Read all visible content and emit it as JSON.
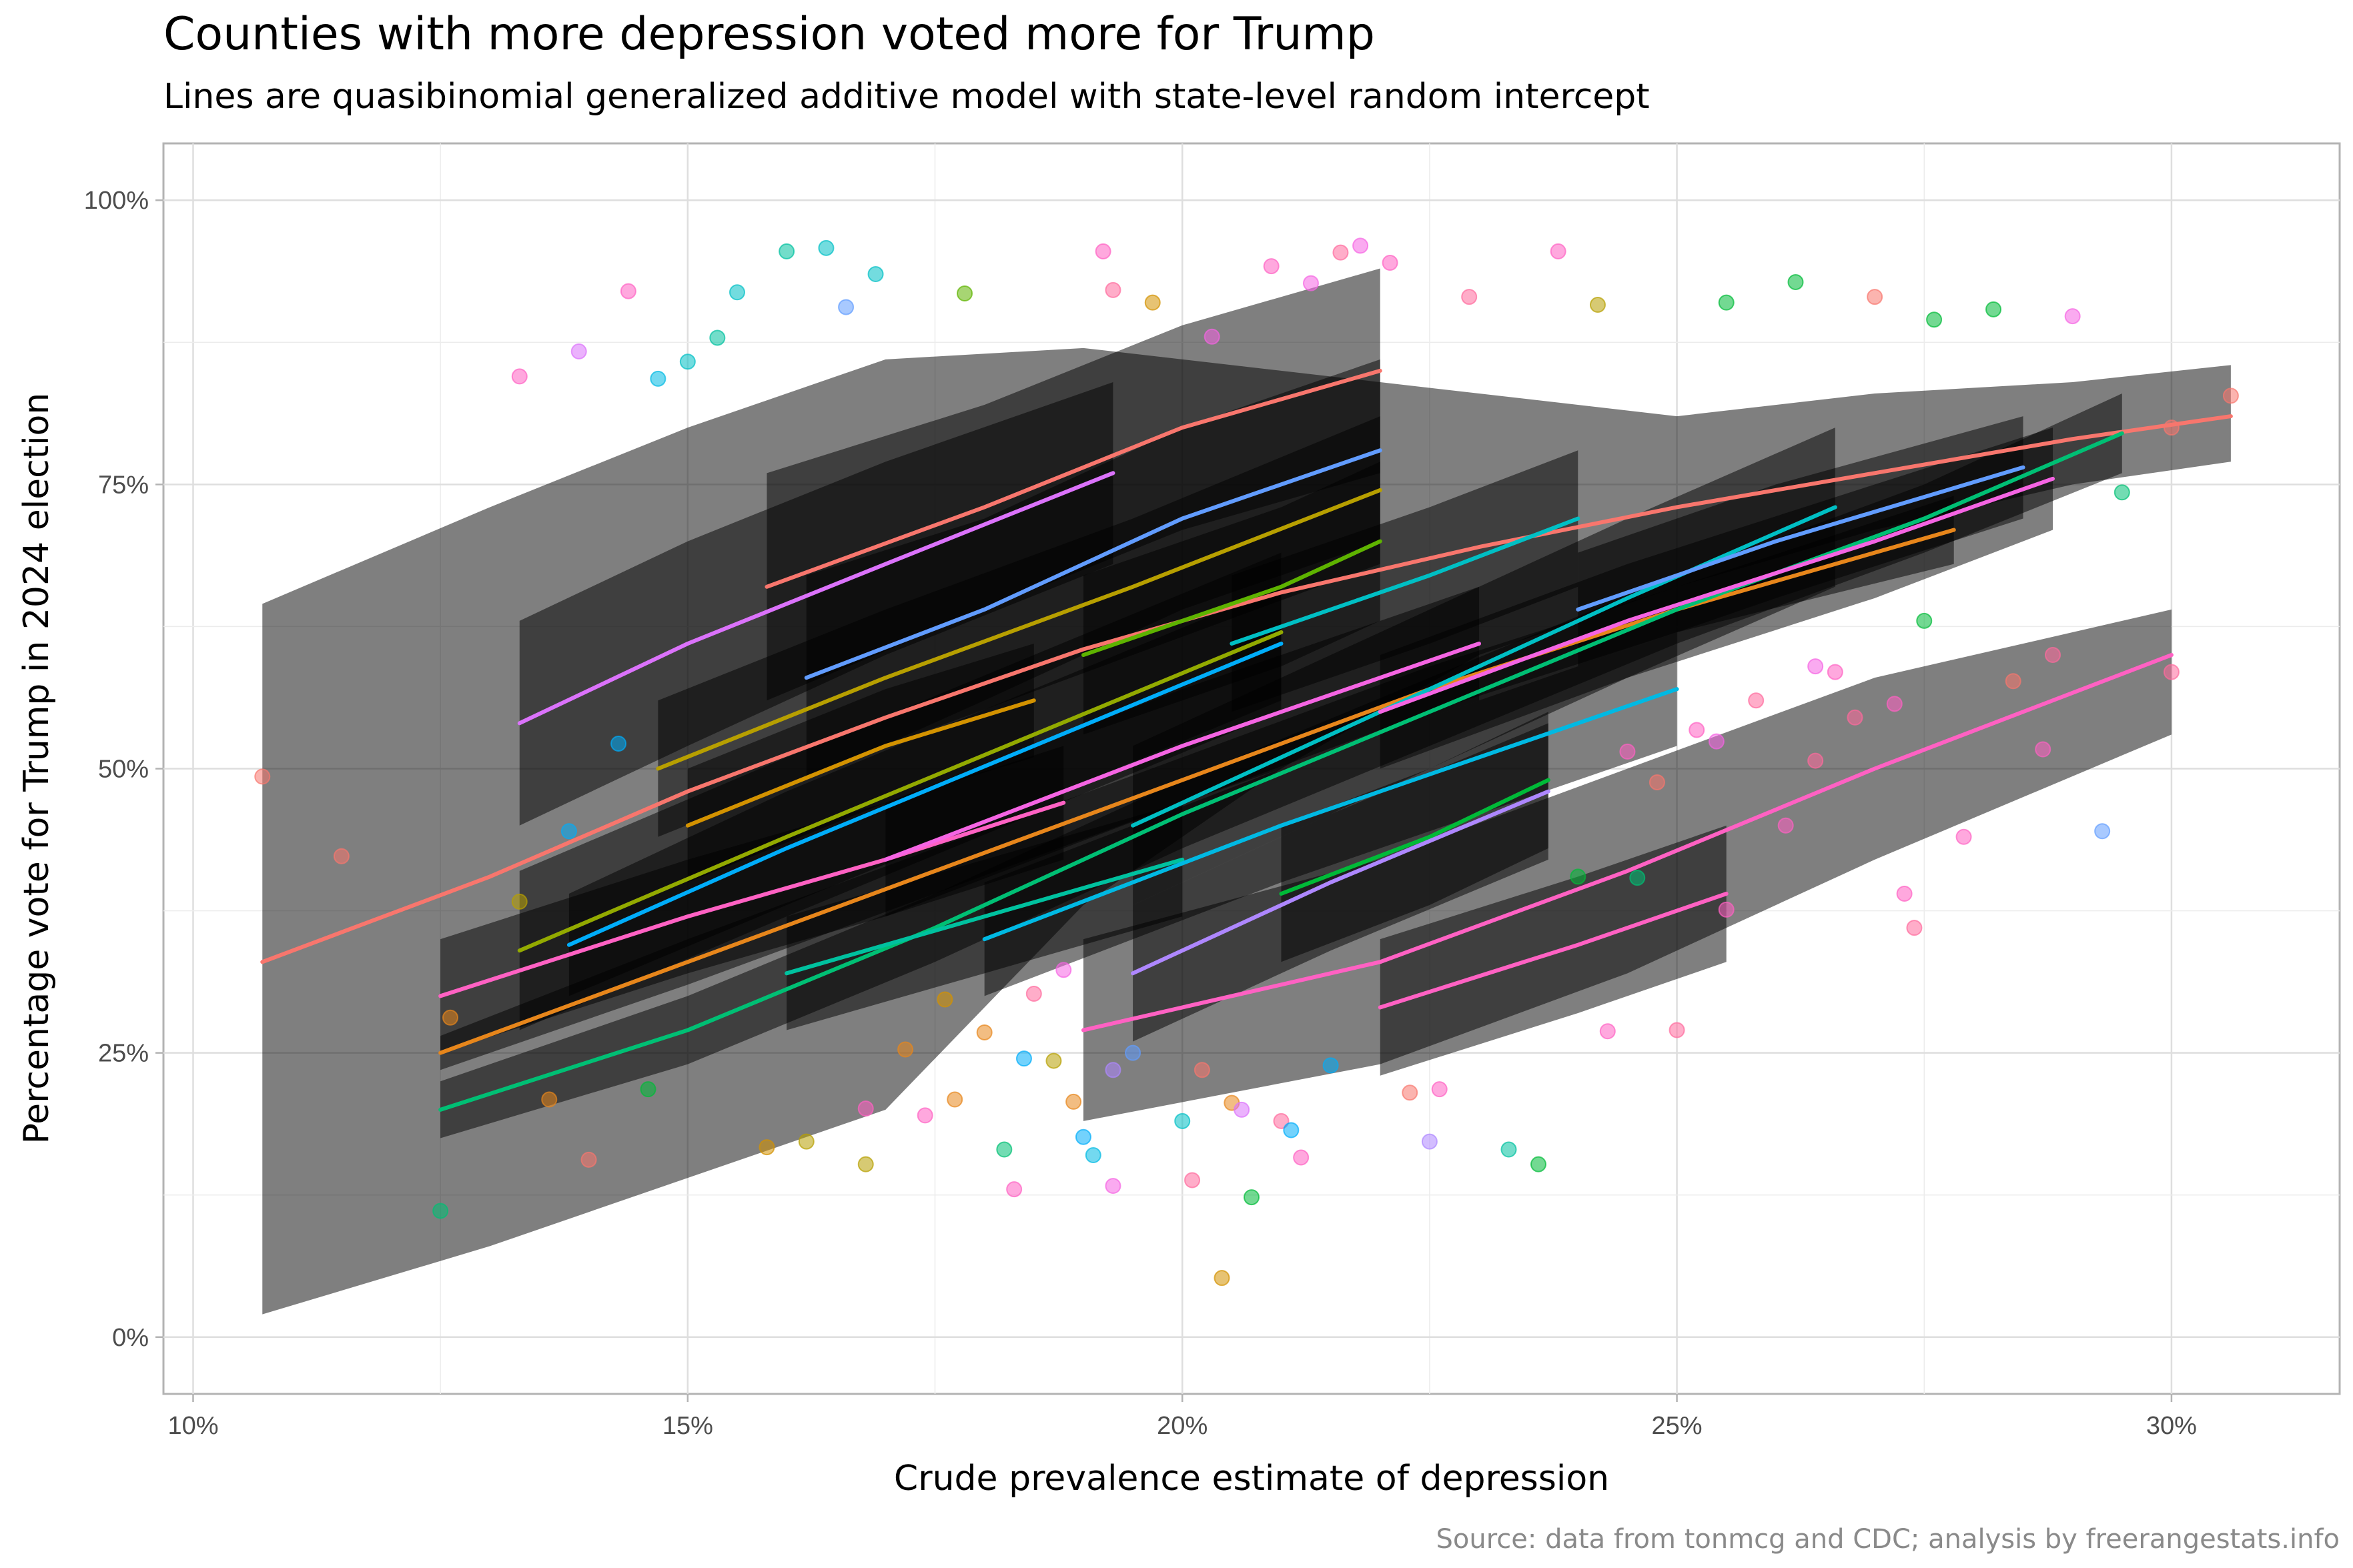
{
  "chart_data": {
    "type": "scatter",
    "title": "Counties with more depression voted more for Trump",
    "subtitle": "Lines are quasibinomial generalized additive model with state-level random intercept",
    "xlabel": "Crude prevalence estimate of depression",
    "ylabel": "Percentage vote for Trump in 2024 election",
    "caption": "Source: data from tonmcg and CDC; analysis by freerangestats.info",
    "xlim": [
      0.097,
      0.317
    ],
    "ylim": [
      -0.05,
      1.05
    ],
    "x_ticks": [
      0.1,
      0.15,
      0.2,
      0.25,
      0.3
    ],
    "x_tick_labels": [
      "10%",
      "15%",
      "20%",
      "25%",
      "30%"
    ],
    "y_ticks": [
      0,
      0.25,
      0.5,
      0.75,
      1.0
    ],
    "y_tick_labels": [
      "0%",
      "25%",
      "50%",
      "75%",
      "100%"
    ],
    "grid": true,
    "legend": "none",
    "band_color": "#000000",
    "series_colors": [
      "#F8766D",
      "#E7861B",
      "#D39200",
      "#B79F00",
      "#93AA00",
      "#5EB300",
      "#00BA38",
      "#00BF74",
      "#00C19F",
      "#00BFC4",
      "#00B9E3",
      "#00ADFA",
      "#619CFF",
      "#AE87FF",
      "#DB72FB",
      "#F564E3",
      "#FF61C3",
      "#FF699C"
    ],
    "fitted_lines": [
      {
        "color": "#F8766D",
        "x": [
          0.107,
          0.13,
          0.15,
          0.17,
          0.19,
          0.21,
          0.23,
          0.25,
          0.27,
          0.29,
          0.306
        ],
        "y": [
          0.33,
          0.405,
          0.48,
          0.545,
          0.605,
          0.655,
          0.695,
          0.73,
          0.76,
          0.79,
          0.81
        ],
        "lo": [
          0.02,
          0.08,
          0.14,
          0.2,
          0.38,
          0.5,
          0.6,
          0.66,
          0.71,
          0.75,
          0.77
        ],
        "hi": [
          0.645,
          0.73,
          0.8,
          0.86,
          0.87,
          0.85,
          0.83,
          0.81,
          0.83,
          0.84,
          0.855
        ]
      },
      {
        "color": "#E7861B",
        "x": [
          0.125,
          0.15,
          0.175,
          0.2,
          0.225,
          0.25,
          0.278
        ],
        "y": [
          0.25,
          0.33,
          0.41,
          0.49,
          0.57,
          0.64,
          0.71
        ],
        "lo": [
          0.235,
          0.31,
          0.39,
          0.47,
          0.55,
          0.62,
          0.68
        ],
        "hi": [
          0.265,
          0.35,
          0.43,
          0.51,
          0.59,
          0.66,
          0.74
        ]
      },
      {
        "color": "#00BF74",
        "x": [
          0.125,
          0.15,
          0.175,
          0.2,
          0.225,
          0.25,
          0.275,
          0.295
        ],
        "y": [
          0.2,
          0.27,
          0.36,
          0.46,
          0.55,
          0.64,
          0.72,
          0.795
        ],
        "lo": [
          0.175,
          0.24,
          0.33,
          0.43,
          0.52,
          0.61,
          0.69,
          0.76
        ],
        "hi": [
          0.225,
          0.3,
          0.39,
          0.49,
          0.58,
          0.67,
          0.75,
          0.83
        ]
      },
      {
        "color": "#DB72FB",
        "x": [
          0.133,
          0.15,
          0.17,
          0.193
        ],
        "y": [
          0.54,
          0.61,
          0.68,
          0.76
        ],
        "lo": [
          0.45,
          0.52,
          0.6,
          0.68
        ],
        "hi": [
          0.63,
          0.7,
          0.77,
          0.84
        ]
      },
      {
        "color": "#F8766D",
        "x": [
          0.158,
          0.18,
          0.2,
          0.22
        ],
        "y": [
          0.66,
          0.73,
          0.8,
          0.85
        ],
        "lo": [
          0.56,
          0.64,
          0.71,
          0.76
        ],
        "hi": [
          0.76,
          0.82,
          0.89,
          0.94
        ]
      },
      {
        "color": "#619CFF",
        "x": [
          0.162,
          0.18,
          0.2,
          0.22
        ],
        "y": [
          0.58,
          0.64,
          0.72,
          0.78
        ],
        "lo": [
          0.49,
          0.56,
          0.64,
          0.7
        ],
        "hi": [
          0.67,
          0.72,
          0.8,
          0.86
        ]
      },
      {
        "color": "#B79F00",
        "x": [
          0.147,
          0.17,
          0.195,
          0.22
        ],
        "y": [
          0.5,
          0.58,
          0.66,
          0.745
        ],
        "lo": [
          0.44,
          0.52,
          0.6,
          0.68
        ],
        "hi": [
          0.56,
          0.64,
          0.72,
          0.81
        ]
      },
      {
        "color": "#93AA00",
        "x": [
          0.133,
          0.16,
          0.185,
          0.21
        ],
        "y": [
          0.34,
          0.44,
          0.53,
          0.62
        ],
        "lo": [
          0.27,
          0.37,
          0.46,
          0.55
        ],
        "hi": [
          0.41,
          0.51,
          0.6,
          0.69
        ]
      },
      {
        "color": "#00ADFA",
        "x": [
          0.138,
          0.16,
          0.185,
          0.21
        ],
        "y": [
          0.345,
          0.43,
          0.52,
          0.61
        ],
        "lo": [
          0.3,
          0.38,
          0.47,
          0.56
        ],
        "hi": [
          0.39,
          0.48,
          0.57,
          0.66
        ]
      },
      {
        "color": "#00BFC4",
        "x": [
          0.195,
          0.22,
          0.245,
          0.266
        ],
        "y": [
          0.45,
          0.55,
          0.65,
          0.73
        ],
        "lo": [
          0.38,
          0.48,
          0.58,
          0.66
        ],
        "hi": [
          0.52,
          0.62,
          0.72,
          0.8
        ]
      },
      {
        "color": "#5EB300",
        "x": [
          0.19,
          0.21,
          0.22
        ],
        "y": [
          0.6,
          0.66,
          0.7
        ],
        "lo": [
          0.53,
          0.59,
          0.63
        ],
        "hi": [
          0.67,
          0.73,
          0.77
        ]
      },
      {
        "color": "#00BA38",
        "x": [
          0.21,
          0.225,
          0.237
        ],
        "y": [
          0.39,
          0.44,
          0.49
        ],
        "lo": [
          0.33,
          0.38,
          0.43
        ],
        "hi": [
          0.45,
          0.5,
          0.55
        ]
      },
      {
        "color": "#AE87FF",
        "x": [
          0.195,
          0.215,
          0.237
        ],
        "y": [
          0.32,
          0.4,
          0.48
        ],
        "lo": [
          0.26,
          0.34,
          0.42
        ],
        "hi": [
          0.38,
          0.46,
          0.54
        ]
      },
      {
        "color": "#FF61C3",
        "x": [
          0.125,
          0.15,
          0.17,
          0.188
        ],
        "y": [
          0.3,
          0.37,
          0.42,
          0.47
        ],
        "lo": [
          0.25,
          0.32,
          0.37,
          0.42
        ],
        "hi": [
          0.35,
          0.42,
          0.47,
          0.52
        ]
      },
      {
        "color": "#FF61C3",
        "x": [
          0.22,
          0.24,
          0.255
        ],
        "y": [
          0.29,
          0.345,
          0.39
        ],
        "lo": [
          0.23,
          0.285,
          0.33
        ],
        "hi": [
          0.35,
          0.405,
          0.45
        ]
      },
      {
        "color": "#FF61C3",
        "x": [
          0.19,
          0.22,
          0.245,
          0.27,
          0.3
        ],
        "y": [
          0.27,
          0.33,
          0.41,
          0.5,
          0.6
        ],
        "lo": [
          0.19,
          0.24,
          0.32,
          0.42,
          0.53
        ],
        "hi": [
          0.35,
          0.42,
          0.5,
          0.58,
          0.64
        ]
      },
      {
        "color": "#00C19F",
        "x": [
          0.16,
          0.18,
          0.2
        ],
        "y": [
          0.32,
          0.37,
          0.42
        ],
        "lo": [
          0.27,
          0.32,
          0.37
        ],
        "hi": [
          0.37,
          0.42,
          0.47
        ]
      },
      {
        "color": "#F564E3",
        "x": [
          0.22,
          0.245,
          0.27,
          0.288
        ],
        "y": [
          0.55,
          0.63,
          0.7,
          0.755
        ],
        "lo": [
          0.5,
          0.58,
          0.65,
          0.71
        ],
        "hi": [
          0.6,
          0.68,
          0.75,
          0.8
        ]
      },
      {
        "color": "#00BFC4",
        "x": [
          0.205,
          0.225,
          0.24
        ],
        "y": [
          0.61,
          0.67,
          0.72
        ],
        "lo": [
          0.55,
          0.61,
          0.66
        ],
        "hi": [
          0.67,
          0.73,
          0.78
        ]
      },
      {
        "color": "#D39200",
        "x": [
          0.15,
          0.17,
          0.185
        ],
        "y": [
          0.45,
          0.52,
          0.56
        ],
        "lo": [
          0.4,
          0.47,
          0.51
        ],
        "hi": [
          0.5,
          0.57,
          0.61
        ]
      },
      {
        "color": "#00B9E3",
        "x": [
          0.18,
          0.21,
          0.25
        ],
        "y": [
          0.35,
          0.45,
          0.57
        ],
        "lo": [
          0.3,
          0.4,
          0.52
        ],
        "hi": [
          0.4,
          0.5,
          0.62
        ]
      },
      {
        "color": "#619CFF",
        "x": [
          0.24,
          0.26,
          0.285
        ],
        "y": [
          0.64,
          0.7,
          0.765
        ],
        "lo": [
          0.59,
          0.65,
          0.72
        ],
        "hi": [
          0.69,
          0.75,
          0.81
        ]
      },
      {
        "color": "#F564E3",
        "x": [
          0.17,
          0.2,
          0.23
        ],
        "y": [
          0.42,
          0.52,
          0.61
        ],
        "lo": [
          0.37,
          0.47,
          0.56
        ],
        "hi": [
          0.47,
          0.57,
          0.66
        ]
      }
    ],
    "points": [
      {
        "x": 0.107,
        "y": 0.493,
        "c": 0
      },
      {
        "x": 0.115,
        "y": 0.423,
        "c": 0
      },
      {
        "x": 0.126,
        "y": 0.281,
        "c": 1
      },
      {
        "x": 0.125,
        "y": 0.111,
        "c": 7
      },
      {
        "x": 0.133,
        "y": 0.845,
        "c": 16
      },
      {
        "x": 0.133,
        "y": 0.383,
        "c": 3
      },
      {
        "x": 0.136,
        "y": 0.209,
        "c": 1
      },
      {
        "x": 0.138,
        "y": 0.445,
        "c": 11
      },
      {
        "x": 0.14,
        "y": 0.156,
        "c": 0
      },
      {
        "x": 0.139,
        "y": 0.867,
        "c": 14
      },
      {
        "x": 0.143,
        "y": 0.522,
        "c": 11
      },
      {
        "x": 0.144,
        "y": 0.92,
        "c": 16
      },
      {
        "x": 0.146,
        "y": 0.218,
        "c": 6
      },
      {
        "x": 0.147,
        "y": 0.843,
        "c": 10
      },
      {
        "x": 0.15,
        "y": 0.858,
        "c": 9
      },
      {
        "x": 0.153,
        "y": 0.879,
        "c": 8
      },
      {
        "x": 0.155,
        "y": 0.919,
        "c": 9
      },
      {
        "x": 0.158,
        "y": 0.167,
        "c": 2
      },
      {
        "x": 0.16,
        "y": 0.955,
        "c": 8
      },
      {
        "x": 0.162,
        "y": 0.172,
        "c": 3
      },
      {
        "x": 0.164,
        "y": 0.958,
        "c": 9
      },
      {
        "x": 0.166,
        "y": 0.906,
        "c": 12
      },
      {
        "x": 0.168,
        "y": 0.201,
        "c": 16
      },
      {
        "x": 0.168,
        "y": 0.152,
        "c": 3
      },
      {
        "x": 0.169,
        "y": 0.935,
        "c": 9
      },
      {
        "x": 0.172,
        "y": 0.253,
        "c": 1
      },
      {
        "x": 0.174,
        "y": 0.195,
        "c": 16
      },
      {
        "x": 0.176,
        "y": 0.297,
        "c": 2
      },
      {
        "x": 0.177,
        "y": 0.209,
        "c": 1
      },
      {
        "x": 0.178,
        "y": 0.918,
        "c": 5
      },
      {
        "x": 0.18,
        "y": 0.268,
        "c": 1
      },
      {
        "x": 0.182,
        "y": 0.165,
        "c": 7
      },
      {
        "x": 0.183,
        "y": 0.13,
        "c": 16
      },
      {
        "x": 0.184,
        "y": 0.245,
        "c": 11
      },
      {
        "x": 0.185,
        "y": 0.302,
        "c": 17
      },
      {
        "x": 0.187,
        "y": 0.243,
        "c": 3
      },
      {
        "x": 0.188,
        "y": 0.323,
        "c": 15
      },
      {
        "x": 0.189,
        "y": 0.207,
        "c": 1
      },
      {
        "x": 0.19,
        "y": 0.176,
        "c": 11
      },
      {
        "x": 0.191,
        "y": 0.16,
        "c": 10
      },
      {
        "x": 0.192,
        "y": 0.955,
        "c": 16
      },
      {
        "x": 0.193,
        "y": 0.235,
        "c": 13
      },
      {
        "x": 0.193,
        "y": 0.133,
        "c": 15
      },
      {
        "x": 0.193,
        "y": 0.921,
        "c": 17
      },
      {
        "x": 0.195,
        "y": 0.25,
        "c": 12
      },
      {
        "x": 0.197,
        "y": 0.91,
        "c": 2
      },
      {
        "x": 0.2,
        "y": 0.19,
        "c": 9
      },
      {
        "x": 0.201,
        "y": 0.138,
        "c": 17
      },
      {
        "x": 0.202,
        "y": 0.235,
        "c": 0
      },
      {
        "x": 0.203,
        "y": 0.88,
        "c": 15
      },
      {
        "x": 0.204,
        "y": 0.052,
        "c": 2
      },
      {
        "x": 0.205,
        "y": 0.206,
        "c": 1
      },
      {
        "x": 0.206,
        "y": 0.2,
        "c": 14
      },
      {
        "x": 0.207,
        "y": 0.123,
        "c": 6
      },
      {
        "x": 0.209,
        "y": 0.942,
        "c": 16
      },
      {
        "x": 0.21,
        "y": 0.19,
        "c": 17
      },
      {
        "x": 0.211,
        "y": 0.182,
        "c": 11
      },
      {
        "x": 0.212,
        "y": 0.158,
        "c": 16
      },
      {
        "x": 0.213,
        "y": 0.927,
        "c": 15
      },
      {
        "x": 0.215,
        "y": 0.239,
        "c": 11
      },
      {
        "x": 0.216,
        "y": 0.954,
        "c": 17
      },
      {
        "x": 0.218,
        "y": 0.96,
        "c": 15
      },
      {
        "x": 0.221,
        "y": 0.945,
        "c": 16
      },
      {
        "x": 0.223,
        "y": 0.215,
        "c": 0
      },
      {
        "x": 0.225,
        "y": 0.172,
        "c": 13
      },
      {
        "x": 0.226,
        "y": 0.218,
        "c": 16
      },
      {
        "x": 0.229,
        "y": 0.915,
        "c": 17
      },
      {
        "x": 0.233,
        "y": 0.165,
        "c": 8
      },
      {
        "x": 0.236,
        "y": 0.152,
        "c": 6
      },
      {
        "x": 0.238,
        "y": 0.955,
        "c": 16
      },
      {
        "x": 0.24,
        "y": 0.405,
        "c": 6
      },
      {
        "x": 0.242,
        "y": 0.908,
        "c": 3
      },
      {
        "x": 0.243,
        "y": 0.269,
        "c": 16
      },
      {
        "x": 0.245,
        "y": 0.515,
        "c": 16
      },
      {
        "x": 0.246,
        "y": 0.404,
        "c": 7
      },
      {
        "x": 0.248,
        "y": 0.488,
        "c": 0
      },
      {
        "x": 0.25,
        "y": 0.27,
        "c": 17
      },
      {
        "x": 0.252,
        "y": 0.534,
        "c": 16
      },
      {
        "x": 0.254,
        "y": 0.524,
        "c": 15
      },
      {
        "x": 0.255,
        "y": 0.376,
        "c": 16
      },
      {
        "x": 0.255,
        "y": 0.91,
        "c": 6
      },
      {
        "x": 0.258,
        "y": 0.56,
        "c": 17
      },
      {
        "x": 0.261,
        "y": 0.45,
        "c": 16
      },
      {
        "x": 0.262,
        "y": 0.928,
        "c": 6
      },
      {
        "x": 0.264,
        "y": 0.59,
        "c": 15
      },
      {
        "x": 0.264,
        "y": 0.507,
        "c": 17
      },
      {
        "x": 0.266,
        "y": 0.585,
        "c": 16
      },
      {
        "x": 0.268,
        "y": 0.545,
        "c": 17
      },
      {
        "x": 0.27,
        "y": 0.915,
        "c": 0
      },
      {
        "x": 0.272,
        "y": 0.557,
        "c": 16
      },
      {
        "x": 0.273,
        "y": 0.39,
        "c": 16
      },
      {
        "x": 0.274,
        "y": 0.36,
        "c": 17
      },
      {
        "x": 0.275,
        "y": 0.63,
        "c": 6
      },
      {
        "x": 0.276,
        "y": 0.895,
        "c": 6
      },
      {
        "x": 0.279,
        "y": 0.44,
        "c": 16
      },
      {
        "x": 0.282,
        "y": 0.904,
        "c": 6
      },
      {
        "x": 0.284,
        "y": 0.577,
        "c": 0
      },
      {
        "x": 0.287,
        "y": 0.517,
        "c": 16
      },
      {
        "x": 0.288,
        "y": 0.6,
        "c": 17
      },
      {
        "x": 0.29,
        "y": 0.898,
        "c": 15
      },
      {
        "x": 0.293,
        "y": 0.445,
        "c": 12
      },
      {
        "x": 0.295,
        "y": 0.743,
        "c": 7
      },
      {
        "x": 0.3,
        "y": 0.585,
        "c": 17
      },
      {
        "x": 0.3,
        "y": 0.8,
        "c": 0
      },
      {
        "x": 0.306,
        "y": 0.828,
        "c": 0
      }
    ]
  }
}
